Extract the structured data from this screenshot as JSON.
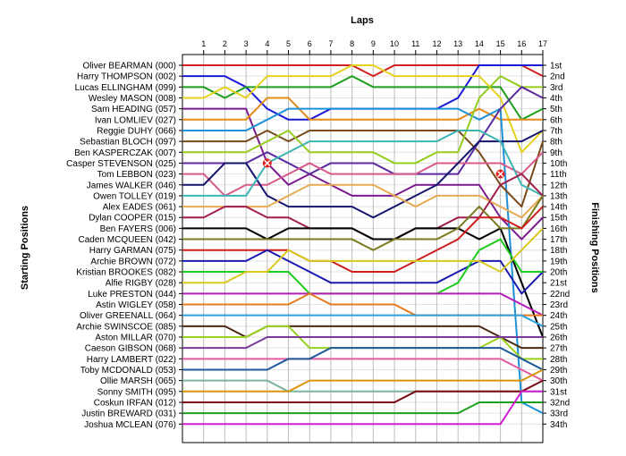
{
  "chart_data": {
    "type": "line",
    "xlabel": "Laps",
    "ylabel_left": "Starting Positions",
    "ylabel_right": "Finishing Positions",
    "laps": [
      1,
      2,
      3,
      4,
      5,
      6,
      7,
      8,
      9,
      10,
      11,
      12,
      13,
      14,
      15,
      16,
      17
    ],
    "drivers": [
      "Oliver BEARMAN (000)",
      "Harry THOMPSON (002)",
      "Lucas ELLINGHAM (099)",
      "Wesley MASON (008)",
      "Sam HEADING (057)",
      "Ivan LOMLIEV (027)",
      "Reggie DUHY (066)",
      "Sebastian BLOCH (097)",
      "Ben KASPERCZAK (007)",
      "Casper STEVENSON (025)",
      "Tom LEBBON (023)",
      "James WALKER (046)",
      "Owen TOLLEY (019)",
      "Alex EADES (061)",
      "Dylan COOPER (015)",
      "Ben FAYERS (006)",
      "Caden MCQUEEN (042)",
      "Harry GARMAN (075)",
      "Archie BROWN (072)",
      "Kristian BROOKES (082)",
      "Alfie RIGBY (028)",
      "Luke PRESTON (044)",
      "Astin WIGLEY (058)",
      "Oliver GREENALL (064)",
      "Archie SWINSCOE (085)",
      "Aston MILLAR (070)",
      "Caeson GIBSON (068)",
      "Harry LAMBERT (022)",
      "Toby MCDONALD (053)",
      "Ollie MARSH (065)",
      "Sonny SMITH (095)",
      "Coskun IRFAN (012)",
      "Justin BREWARD (031)",
      "Joshua MCLEAN (076)"
    ],
    "finishing_labels": [
      "1st",
      "2nd",
      "3rd",
      "4th",
      "5th",
      "6th",
      "7th",
      "8th",
      "9th",
      "10th",
      "11th",
      "12th",
      "13th",
      "14th",
      "15th",
      "16th",
      "17th",
      "18th",
      "19th",
      "20th",
      "21st",
      "22nd",
      "23rd",
      "24th",
      "25th",
      "26th",
      "27th",
      "28th",
      "29th",
      "30th",
      "31st",
      "32nd",
      "33rd",
      "34th"
    ],
    "series": [
      {
        "color": "#d11f1f",
        "positions": [
          1,
          1,
          1,
          1,
          1,
          1,
          1,
          1,
          2,
          1,
          1,
          1,
          1,
          1,
          1,
          1,
          2
        ]
      },
      {
        "color": "#1a1ad6",
        "positions": [
          2,
          2,
          3,
          5,
          6,
          6,
          5,
          5,
          5,
          5,
          5,
          5,
          4,
          1,
          1,
          1,
          1
        ]
      },
      {
        "color": "#1e9e1e",
        "positions": [
          3,
          4,
          3,
          3,
          3,
          3,
          3,
          2,
          3,
          3,
          3,
          3,
          3,
          3,
          3,
          6,
          5
        ]
      },
      {
        "color": "#e6d21c",
        "positions": [
          4,
          3,
          4,
          2,
          2,
          2,
          2,
          1,
          1,
          2,
          2,
          2,
          2,
          2,
          4,
          9,
          7
        ]
      },
      {
        "color": "#7a1a8c",
        "positions": [
          5,
          5,
          5,
          10,
          12,
          11,
          12,
          13,
          13,
          13,
          12,
          12,
          12,
          12,
          15,
          17,
          15
        ]
      },
      {
        "color": "#e68a1a",
        "positions": [
          6,
          6,
          6,
          4,
          4,
          6,
          6,
          6,
          6,
          6,
          6,
          6,
          6,
          5,
          6,
          6,
          6
        ]
      },
      {
        "color": "#1e90d6",
        "positions": [
          7,
          7,
          7,
          6,
          5,
          5,
          5,
          5,
          5,
          5,
          5,
          5,
          5,
          6,
          5,
          32,
          33
        ]
      },
      {
        "color": "#7a4a1a",
        "positions": [
          8,
          8,
          8,
          7,
          8,
          7,
          7,
          7,
          7,
          7,
          7,
          7,
          7,
          9,
          12,
          14,
          8
        ]
      },
      {
        "color": "#96cc1e",
        "positions": [
          9,
          9,
          9,
          8,
          7,
          9,
          9,
          9,
          9,
          10,
          10,
          9,
          9,
          4,
          2,
          3,
          3
        ]
      },
      {
        "color": "#5a2aa0",
        "positions": [
          10,
          10,
          10,
          9,
          10,
          11,
          10,
          10,
          10,
          11,
          11,
          11,
          11,
          8,
          5,
          3,
          4
        ]
      },
      {
        "color": "#d85a8c",
        "positions": [
          11,
          13,
          12,
          12,
          11,
          10,
          11,
          11,
          11,
          11,
          11,
          10,
          10,
          10,
          10,
          11,
          9
        ]
      },
      {
        "color": "#15156e",
        "positions": [
          12,
          10,
          10,
          13,
          14,
          14,
          14,
          14,
          15,
          14,
          13,
          12,
          10,
          8,
          8,
          8,
          7
        ]
      },
      {
        "color": "#3cb4b4",
        "positions": [
          13,
          13,
          13,
          10,
          9,
          8,
          8,
          8,
          8,
          8,
          8,
          8,
          7,
          7,
          8,
          12,
          13
        ]
      },
      {
        "color": "#e8aa50",
        "positions": [
          14,
          14,
          14,
          14,
          13,
          12,
          12,
          12,
          12,
          13,
          14,
          13,
          13,
          13,
          14,
          15,
          13
        ]
      },
      {
        "color": "#a01e4a",
        "positions": [
          15,
          14,
          14,
          15,
          15,
          16,
          16,
          16,
          17,
          17,
          16,
          16,
          15,
          15,
          12,
          11,
          13
        ]
      },
      {
        "color": "#000000",
        "positions": [
          16,
          16,
          16,
          17,
          16,
          16,
          16,
          16,
          17,
          17,
          16,
          16,
          16,
          17,
          16,
          21,
          26
        ]
      },
      {
        "color": "#7a7a1e",
        "positions": [
          17,
          17,
          17,
          17,
          17,
          17,
          17,
          17,
          18,
          17,
          17,
          17,
          16,
          14,
          16,
          16,
          13
        ]
      },
      {
        "color": "#cc1e1e",
        "positions": [
          18,
          18,
          18,
          18,
          18,
          19,
          19,
          20,
          20,
          20,
          19,
          18,
          17,
          15,
          15,
          16,
          14
        ]
      },
      {
        "color": "#1a1ab0",
        "positions": [
          19,
          19,
          19,
          18,
          19,
          20,
          21,
          21,
          21,
          21,
          21,
          21,
          20,
          19,
          19,
          22,
          20
        ]
      },
      {
        "color": "#1ecc1e",
        "positions": [
          20,
          20,
          20,
          20,
          20,
          22,
          22,
          22,
          22,
          22,
          22,
          22,
          21,
          18,
          17,
          20,
          20
        ]
      },
      {
        "color": "#d8c81e",
        "positions": [
          21,
          21,
          20,
          20,
          18,
          19,
          19,
          19,
          19,
          19,
          19,
          19,
          19,
          19,
          20,
          18,
          16
        ]
      },
      {
        "color": "#b41eb4",
        "positions": [
          22,
          22,
          22,
          22,
          22,
          22,
          22,
          22,
          22,
          22,
          22,
          22,
          22,
          22,
          22,
          23,
          24
        ]
      },
      {
        "color": "#e67a1e",
        "positions": [
          23,
          23,
          23,
          23,
          23,
          22,
          23,
          23,
          23,
          23,
          24,
          24,
          24,
          24,
          24,
          24,
          24
        ]
      },
      {
        "color": "#2ea0e0",
        "positions": [
          24,
          24,
          24,
          24,
          24,
          24,
          24,
          24,
          24,
          24,
          24,
          24,
          24,
          24,
          24,
          24,
          25
        ]
      },
      {
        "color": "#4a2a14",
        "positions": [
          25,
          25,
          26,
          25,
          25,
          25,
          25,
          25,
          25,
          25,
          25,
          25,
          25,
          25,
          26,
          27,
          27
        ]
      },
      {
        "color": "#9ad21e",
        "positions": [
          26,
          26,
          26,
          25,
          25,
          27,
          27,
          27,
          27,
          27,
          27,
          27,
          27,
          27,
          26,
          28,
          28
        ]
      },
      {
        "color": "#7a3a9a",
        "positions": [
          27,
          27,
          27,
          26,
          26,
          26,
          26,
          26,
          26,
          26,
          26,
          26,
          26,
          26,
          26,
          26,
          26
        ]
      },
      {
        "color": "#e85aa0",
        "positions": [
          28,
          28,
          28,
          28,
          28,
          28,
          28,
          28,
          28,
          28,
          28,
          28,
          28,
          28,
          28,
          29,
          30
        ]
      },
      {
        "color": "#1e5a9a",
        "positions": [
          29,
          29,
          29,
          29,
          28,
          28,
          27,
          27,
          27,
          27,
          27,
          27,
          27,
          27,
          27,
          28,
          29
        ]
      },
      {
        "color": "#7ab4a0",
        "positions": [
          30,
          30,
          30,
          30,
          31,
          31,
          31,
          31,
          31,
          31,
          31,
          31,
          31,
          31,
          31,
          31,
          31
        ]
      },
      {
        "color": "#d8960a",
        "positions": [
          31,
          31,
          31,
          31,
          31,
          30,
          30,
          30,
          30,
          30,
          30,
          30,
          30,
          30,
          30,
          30,
          29
        ]
      },
      {
        "color": "#7a0a14",
        "positions": [
          32,
          32,
          32,
          32,
          32,
          32,
          32,
          32,
          32,
          32,
          31,
          31,
          31,
          31,
          31,
          31,
          30
        ]
      },
      {
        "color": "#1ea01e",
        "positions": [
          33,
          33,
          33,
          33,
          33,
          33,
          33,
          33,
          33,
          33,
          33,
          33,
          33,
          32,
          32,
          32,
          32
        ]
      },
      {
        "color": "#d21ed2",
        "positions": [
          34,
          34,
          34,
          34,
          34,
          34,
          34,
          34,
          34,
          34,
          34,
          34,
          34,
          34,
          34,
          31,
          31
        ]
      }
    ],
    "retirements": [
      {
        "lap": 4,
        "position": 10
      },
      {
        "lap": 15,
        "position": 11
      }
    ],
    "grid": true
  }
}
